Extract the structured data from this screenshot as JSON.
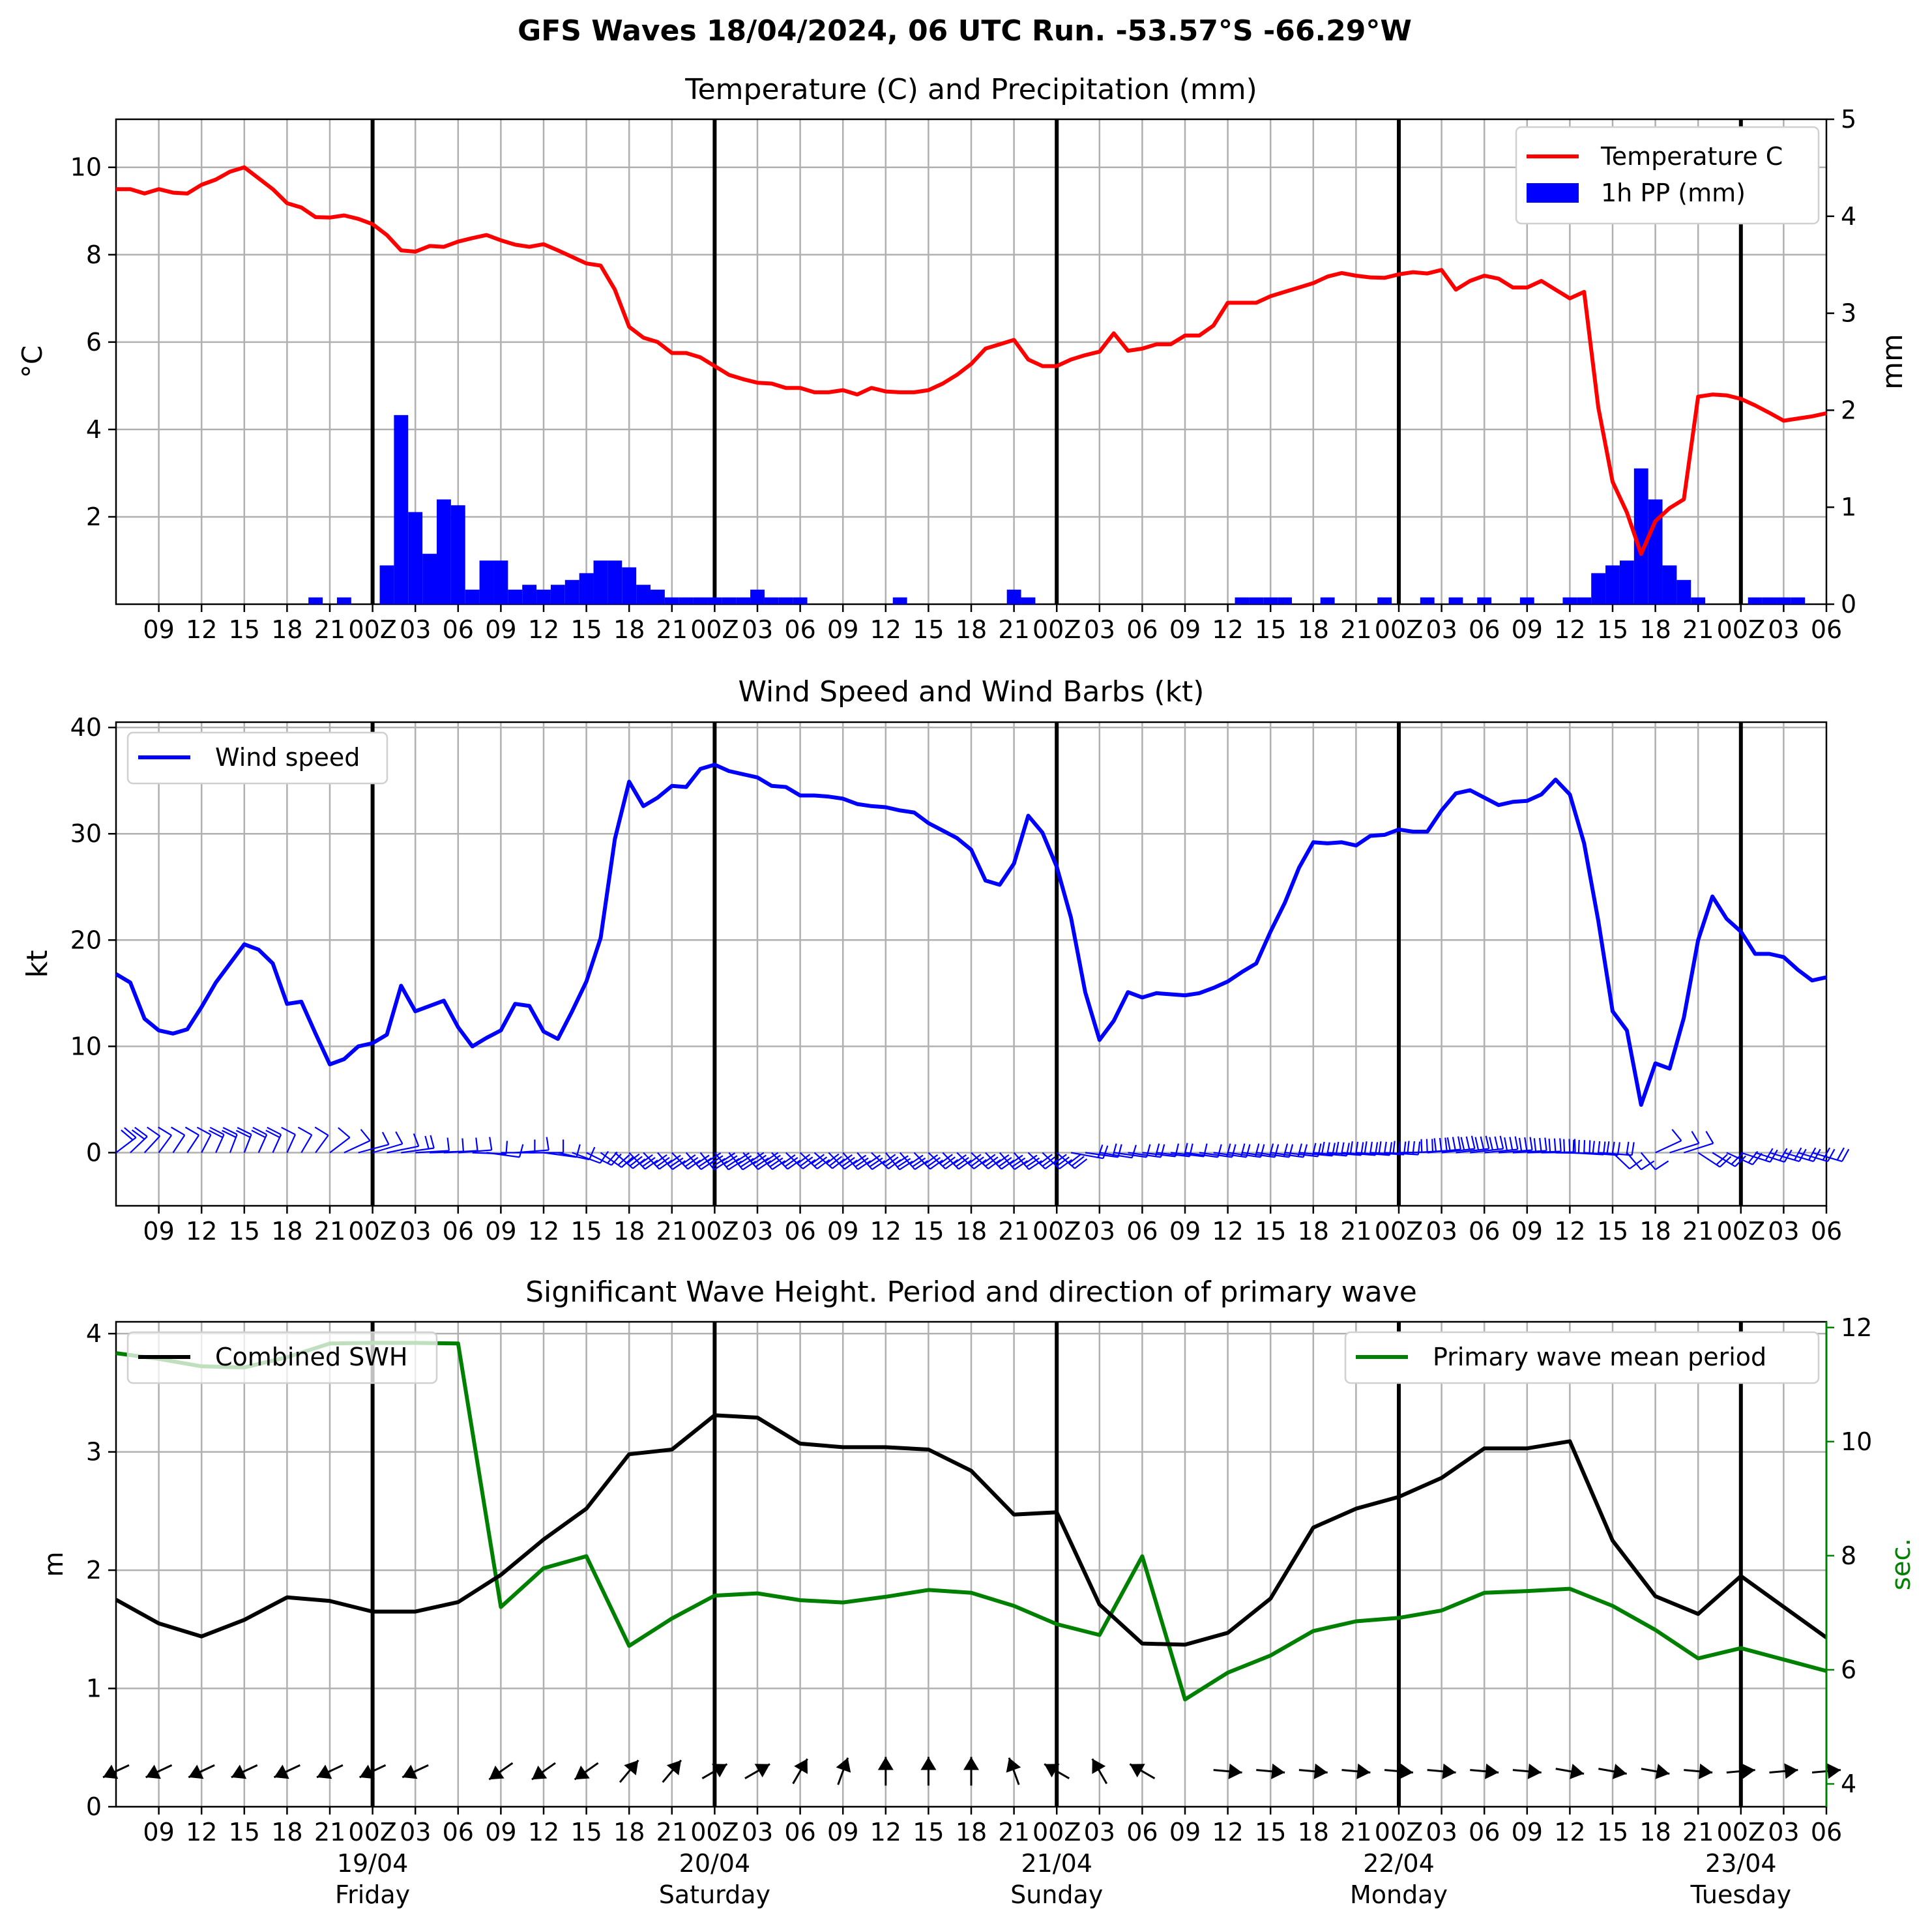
{
  "figure": {
    "suptitle": "GFS Waves 18/04/2024, 06 UTC Run. -53.57°S -66.29°W",
    "x_tick_labels": [
      "09",
      "12",
      "15",
      "18",
      "21",
      "00Z",
      "03",
      "06",
      "09",
      "12",
      "15",
      "18",
      "21",
      "00Z",
      "03",
      "06",
      "09",
      "12",
      "15",
      "18",
      "21",
      "00Z",
      "03",
      "06",
      "09",
      "12",
      "15",
      "18",
      "21",
      "00Z",
      "03",
      "06",
      "09",
      "12",
      "15",
      "18",
      "21",
      "00Z",
      "03",
      "06"
    ],
    "day_labels": [
      {
        "date": "19/04",
        "weekday": "Friday"
      },
      {
        "date": "20/04",
        "weekday": "Saturday"
      },
      {
        "date": "21/04",
        "weekday": "Sunday"
      },
      {
        "date": "22/04",
        "weekday": "Monday"
      },
      {
        "date": "23/04",
        "weekday": "Tuesday"
      }
    ],
    "x_axis_note": "hours after 18/04 06 UTC; x from 0 to 120",
    "colors": {
      "temperature": "#ff0000",
      "precip": "#0000ff",
      "wind": "#0000ff",
      "swh": "#000000",
      "period": "#008000",
      "grid": "#b0b0b0"
    }
  },
  "chart_data": [
    {
      "type": "line",
      "title": "Temperature (C) and Precipitation (mm)",
      "ylabel": "$^\\circ$C",
      "ylabel_right": "mm",
      "ylim": [
        0,
        11.1
      ],
      "ylim_right": [
        0,
        5
      ],
      "yticks": [
        "2",
        "4",
        "6",
        "8",
        "10"
      ],
      "yticks_right": [
        "0",
        "1",
        "2",
        "3",
        "4",
        "5"
      ],
      "grid": true,
      "legend": {
        "position": "top-right",
        "items": [
          "Temperature C",
          "1h PP (mm)"
        ]
      },
      "series": [
        {
          "name": "Temperature C",
          "x": [
            0,
            1,
            2,
            3,
            4,
            5,
            6,
            7,
            8,
            9,
            10,
            11,
            12,
            13,
            14,
            15,
            16,
            17,
            18,
            19,
            20,
            21,
            22,
            23,
            24,
            25,
            26,
            27,
            28,
            29,
            30,
            31,
            32,
            33,
            34,
            35,
            36,
            37,
            38,
            39,
            40,
            41,
            42,
            43,
            44,
            45,
            46,
            47,
            48,
            49,
            50,
            51,
            52,
            53,
            54,
            55,
            56,
            57,
            58,
            59,
            60,
            61,
            62,
            63,
            64,
            65,
            66,
            67,
            68,
            69,
            70,
            71,
            72,
            73,
            74,
            75,
            76,
            77,
            78,
            79,
            80,
            81,
            82,
            83,
            84,
            85,
            86,
            87,
            88,
            89,
            90,
            91,
            92,
            93,
            94,
            95,
            96,
            97,
            98,
            99,
            100,
            101,
            102,
            103,
            104,
            105,
            106,
            107,
            108,
            109,
            110,
            111,
            112,
            113,
            114,
            115,
            116,
            117,
            118,
            119,
            120
          ],
          "y": [
            9.5,
            9.5,
            9.4,
            9.5,
            9.42,
            9.4,
            9.6,
            9.72,
            9.9,
            10.0,
            9.75,
            9.5,
            9.18,
            9.08,
            8.86,
            8.85,
            8.9,
            8.82,
            8.7,
            8.45,
            8.1,
            8.07,
            8.2,
            8.18,
            8.3,
            8.38,
            8.45,
            8.33,
            8.23,
            8.18,
            8.24,
            8.1,
            7.95,
            7.8,
            7.75,
            7.2,
            6.35,
            6.1,
            6.0,
            5.75,
            5.75,
            5.65,
            5.45,
            5.25,
            5.15,
            5.07,
            5.05,
            4.95,
            4.95,
            4.85,
            4.85,
            4.9,
            4.8,
            4.95,
            4.87,
            4.85,
            4.85,
            4.9,
            5.05,
            5.25,
            5.5,
            5.85,
            5.95,
            6.05,
            5.6,
            5.45,
            5.45,
            5.6,
            5.7,
            5.78,
            6.2,
            5.8,
            5.85,
            5.95,
            5.95,
            6.15,
            6.15,
            6.38,
            6.9,
            6.9,
            6.9,
            7.05,
            7.15,
            7.25,
            7.35,
            7.5,
            7.58,
            7.52,
            7.48,
            7.47,
            7.55,
            7.6,
            7.57,
            7.65,
            7.2,
            7.4,
            7.52,
            7.45,
            7.25,
            7.25,
            7.4,
            7.2,
            7.0,
            7.15,
            4.5,
            2.8,
            2.1,
            1.15,
            1.9,
            2.2,
            2.4,
            4.75,
            4.8,
            4.78,
            4.7,
            4.55,
            4.38,
            4.2,
            4.25,
            4.3,
            4.37
          ]
        },
        {
          "name": "1h PP (mm)",
          "type": "bar",
          "x": [
            14,
            16,
            19,
            20,
            21,
            22,
            23,
            24,
            25,
            26,
            27,
            28,
            29,
            30,
            31,
            32,
            33,
            34,
            35,
            36,
            37,
            38,
            39,
            40,
            41,
            42,
            43,
            44,
            45,
            46,
            47,
            48,
            55,
            63,
            64,
            79,
            80,
            81,
            82,
            85,
            89,
            92,
            94,
            96,
            99,
            102,
            103,
            104,
            105,
            106,
            107,
            108,
            109,
            110,
            111,
            115,
            116,
            117,
            118
          ],
          "values": [
            0.07,
            0.07,
            0.4,
            1.95,
            0.95,
            0.52,
            1.08,
            1.02,
            0.15,
            0.45,
            0.45,
            0.15,
            0.2,
            0.15,
            0.2,
            0.25,
            0.32,
            0.45,
            0.45,
            0.38,
            0.2,
            0.15,
            0.07,
            0.07,
            0.07,
            0.07,
            0.07,
            0.07,
            0.15,
            0.07,
            0.07,
            0.07,
            0.07,
            0.15,
            0.07,
            0.07,
            0.07,
            0.07,
            0.07,
            0.07,
            0.07,
            0.07,
            0.07,
            0.07,
            0.07,
            0.07,
            0.07,
            0.32,
            0.4,
            0.45,
            1.4,
            1.08,
            0.4,
            0.25,
            0.07,
            0.07,
            0.07,
            0.07,
            0.07
          ]
        }
      ]
    },
    {
      "type": "line",
      "title": "Wind Speed and Wind Barbs (kt)",
      "ylabel": "kt",
      "ylim": [
        -5,
        40.5
      ],
      "yticks": [
        "0",
        "10",
        "20",
        "30",
        "40"
      ],
      "grid": true,
      "legend": {
        "position": "top-left",
        "items": [
          "Wind speed"
        ]
      },
      "series": [
        {
          "name": "Wind speed",
          "x": [
            0,
            1,
            2,
            3,
            4,
            5,
            6,
            7,
            8,
            9,
            10,
            11,
            12,
            13,
            14,
            15,
            16,
            17,
            18,
            19,
            20,
            21,
            22,
            23,
            24,
            25,
            26,
            27,
            28,
            29,
            30,
            31,
            32,
            33,
            34,
            35,
            36,
            37,
            38,
            39,
            40,
            41,
            42,
            43,
            44,
            45,
            46,
            47,
            48,
            49,
            50,
            51,
            52,
            53,
            54,
            55,
            56,
            57,
            58,
            59,
            60,
            61,
            62,
            63,
            64,
            65,
            66,
            67,
            68,
            69,
            70,
            71,
            72,
            73,
            74,
            75,
            76,
            77,
            78,
            79,
            80,
            81,
            82,
            83,
            84,
            85,
            86,
            87,
            88,
            89,
            90,
            91,
            92,
            93,
            94,
            95,
            96,
            97,
            98,
            99,
            100,
            101,
            102,
            103,
            104,
            105,
            106,
            107,
            108,
            109,
            110,
            111,
            112,
            113,
            114,
            115,
            116,
            117,
            118,
            119,
            120
          ],
          "y": [
            16.8,
            16.0,
            12.6,
            11.5,
            11.2,
            11.6,
            13.7,
            16.0,
            17.8,
            19.6,
            19.1,
            17.8,
            14.0,
            14.2,
            11.2,
            8.3,
            8.8,
            10.0,
            10.3,
            11.1,
            15.7,
            13.3,
            13.8,
            14.3,
            11.8,
            10.0,
            10.8,
            11.5,
            14.0,
            13.8,
            11.4,
            10.7,
            13.3,
            16.1,
            20.2,
            29.5,
            34.9,
            32.6,
            33.4,
            34.5,
            34.4,
            36.1,
            36.5,
            35.9,
            35.6,
            35.3,
            34.5,
            34.4,
            33.6,
            33.6,
            33.5,
            33.3,
            32.8,
            32.6,
            32.5,
            32.2,
            32.0,
            31.0,
            30.3,
            29.6,
            28.5,
            25.6,
            25.2,
            27.2,
            31.7,
            30.1,
            26.9,
            22.1,
            15.1,
            10.6,
            12.4,
            15.1,
            14.6,
            15.0,
            14.9,
            14.8,
            15.0,
            15.5,
            16.1,
            17.0,
            17.8,
            20.8,
            23.5,
            26.8,
            29.2,
            29.1,
            29.2,
            28.9,
            29.8,
            29.9,
            30.4,
            30.2,
            30.2,
            32.2,
            33.8,
            34.1,
            33.4,
            32.7,
            33.0,
            33.1,
            33.7,
            35.1,
            33.7,
            29.1,
            21.8,
            13.3,
            11.5,
            4.5,
            8.4,
            7.9,
            12.7,
            20.0,
            24.1,
            22.0,
            20.8,
            18.7,
            18.7,
            18.4,
            17.2,
            16.2,
            16.5
          ]
        }
      ],
      "wind_barbs": {
        "x_start": 0,
        "x_step": 1,
        "heading_deg": [
          36,
          30,
          27,
          22,
          20,
          20,
          16,
          14,
          12,
          12,
          14,
          14,
          14,
          18,
          22,
          36,
          50,
          64,
          62,
          70,
          76,
          84,
          86,
          84,
          82,
          94,
          104,
          90,
          82,
          90,
          104,
          112,
          124,
          132,
          142,
          148,
          152,
          152,
          154,
          152,
          154,
          156,
          156,
          156,
          154,
          154,
          152,
          150,
          150,
          148,
          152,
          154,
          154,
          150,
          156,
          154,
          152,
          150,
          152,
          150,
          150,
          152,
          154,
          154,
          150,
          150,
          148,
          108,
          104,
          106,
          104,
          104,
          102,
          102,
          102,
          104,
          104,
          104,
          104,
          104,
          104,
          104,
          102,
          100,
          100,
          98,
          98,
          98,
          96,
          96,
          88,
          84,
          80,
          78,
          78,
          78,
          80,
          82,
          84,
          86,
          88,
          92,
          96,
          98,
          98,
          150,
          155,
          155,
          50,
          60,
          60,
          140,
          138,
          130,
          120,
          120,
          118,
          118,
          118,
          118
        ]
      }
    },
    {
      "type": "line",
      "title": "Significant Wave Height. Period and direction of primary wave",
      "ylabel": "m",
      "ylabel_right": "sec.",
      "ylim": [
        0,
        4.1
      ],
      "ylim_right": [
        3.6,
        12.1
      ],
      "yticks": [
        "0",
        "1",
        "2",
        "3",
        "4"
      ],
      "yticks_right": [
        "4",
        "6",
        "8",
        "10",
        "12"
      ],
      "grid": true,
      "legend": {
        "position": "top-left and top-right",
        "items": [
          "Combined SWH",
          "Primary wave mean period"
        ]
      },
      "series": [
        {
          "name": "Combined SWH",
          "x": [
            0,
            3,
            6,
            9,
            12,
            15,
            18,
            21,
            24,
            27,
            30,
            33,
            36,
            39,
            42,
            45,
            48,
            51,
            54,
            57,
            60,
            63,
            66,
            69,
            72,
            75,
            78,
            81,
            84,
            87,
            90,
            93,
            96,
            99,
            102,
            105,
            108,
            111,
            114,
            117,
            120
          ],
          "y": [
            1.75,
            1.55,
            1.44,
            1.58,
            1.77,
            1.74,
            1.65,
            1.65,
            1.73,
            1.96,
            2.26,
            2.52,
            2.98,
            3.02,
            3.31,
            3.29,
            3.07,
            3.04,
            3.04,
            3.02,
            2.84,
            2.47,
            2.49,
            1.71,
            1.38,
            1.37,
            1.47,
            1.76,
            2.36,
            2.52,
            2.62,
            2.78,
            3.03,
            3.03,
            3.09,
            2.25,
            1.78,
            1.63,
            1.95,
            1.69,
            1.43
          ]
        },
        {
          "name": "Primary wave mean period",
          "x": [
            0,
            3,
            6,
            9,
            12,
            15,
            18,
            21,
            24,
            27,
            30,
            33,
            36,
            39,
            42,
            45,
            48,
            51,
            54,
            57,
            60,
            63,
            66,
            69,
            72,
            75,
            78,
            81,
            84,
            87,
            90,
            93,
            96,
            99,
            102,
            105,
            108,
            111,
            114,
            117,
            120
          ],
          "y": [
            11.55,
            11.45,
            11.32,
            11.3,
            11.48,
            11.72,
            11.73,
            11.73,
            11.72,
            7.1,
            7.78,
            7.99,
            6.42,
            6.9,
            7.3,
            7.34,
            7.22,
            7.18,
            7.28,
            7.4,
            7.35,
            7.12,
            6.8,
            6.61,
            7.99,
            5.48,
            5.95,
            6.25,
            6.68,
            6.85,
            6.91,
            7.04,
            7.35,
            7.38,
            7.42,
            7.12,
            6.7,
            6.2,
            6.38,
            6.18,
            5.98
          ]
        }
      ],
      "wave_direction_arrows": {
        "x": [
          0,
          3,
          6,
          9,
          12,
          15,
          18,
          21,
          24,
          27,
          30,
          33,
          36,
          39,
          42,
          45,
          48,
          51,
          54,
          57,
          60,
          63,
          66,
          69,
          72,
          75,
          78,
          81,
          84,
          87,
          90,
          93,
          96,
          99,
          102,
          105,
          108,
          111,
          114,
          117,
          120
        ],
        "toward_deg": [
          245,
          245,
          245,
          245,
          245,
          245,
          245,
          245,
          null,
          235,
          235,
          235,
          40,
          40,
          60,
          60,
          30,
          20,
          0,
          0,
          0,
          340,
          300,
          330,
          300,
          null,
          95,
          95,
          95,
          95,
          95,
          95,
          95,
          95,
          100,
          100,
          100,
          95,
          85,
          85,
          85
        ]
      }
    }
  ]
}
